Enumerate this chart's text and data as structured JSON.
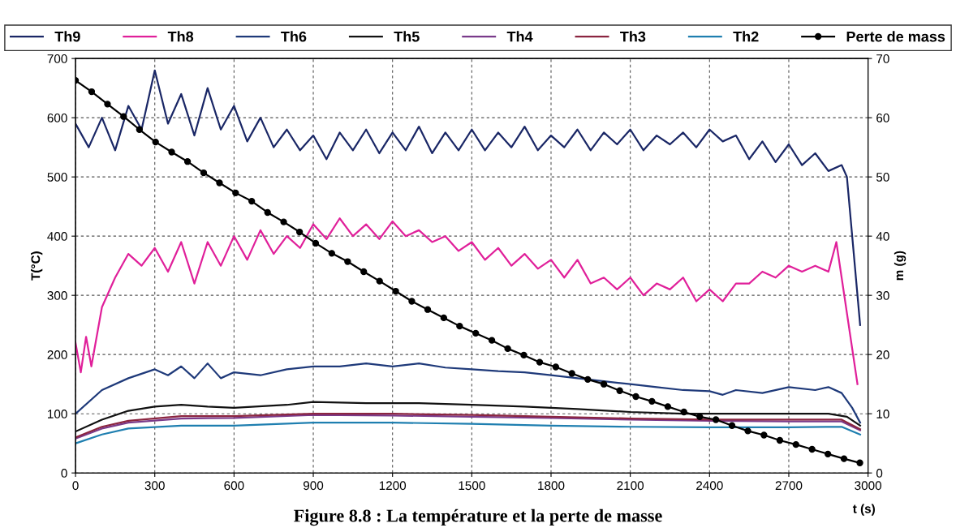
{
  "chart_data": {
    "type": "line",
    "xlabel": "t (s)",
    "ylabel": "T(°C)",
    "y2label": "m (g)",
    "annotations": [
      "Figure 8.8 : La température et la perte de masse"
    ],
    "xlim": [
      0,
      3000
    ],
    "xticks": [
      0,
      300,
      600,
      900,
      1200,
      1500,
      1800,
      2100,
      2400,
      2700,
      3000
    ],
    "ylim": [
      0,
      700
    ],
    "yticks": [
      0,
      100,
      200,
      300,
      400,
      500,
      600,
      700
    ],
    "y2lim": [
      0,
      70
    ],
    "y2ticks": [
      0,
      10,
      20,
      30,
      40,
      50,
      60,
      70
    ],
    "grid": true,
    "legend": "top",
    "line_style": "solid",
    "marker": "none",
    "series": [
      {
        "name": "Th9",
        "color": "#1a2766",
        "x": [
          0,
          50,
          100,
          150,
          200,
          250,
          300,
          350,
          400,
          450,
          500,
          550,
          600,
          650,
          700,
          750,
          800,
          850,
          900,
          950,
          1000,
          1050,
          1100,
          1150,
          1200,
          1250,
          1300,
          1350,
          1400,
          1450,
          1500,
          1550,
          1600,
          1650,
          1700,
          1750,
          1800,
          1850,
          1900,
          1950,
          2000,
          2050,
          2100,
          2150,
          2200,
          2250,
          2300,
          2350,
          2400,
          2450,
          2500,
          2550,
          2600,
          2650,
          2700,
          2750,
          2800,
          2850,
          2900,
          2920,
          2950,
          2970
        ],
        "values": [
          590,
          550,
          600,
          545,
          620,
          580,
          680,
          590,
          640,
          570,
          650,
          580,
          620,
          560,
          600,
          550,
          580,
          545,
          570,
          530,
          575,
          545,
          580,
          540,
          575,
          545,
          585,
          540,
          575,
          545,
          580,
          545,
          575,
          550,
          585,
          545,
          570,
          550,
          580,
          545,
          575,
          555,
          580,
          545,
          570,
          555,
          575,
          550,
          580,
          560,
          570,
          530,
          560,
          525,
          555,
          520,
          540,
          510,
          520,
          500,
          350,
          250
        ]
      },
      {
        "name": "Th8",
        "color": "#e0209a",
        "x": [
          0,
          20,
          40,
          60,
          100,
          150,
          200,
          250,
          300,
          350,
          400,
          450,
          500,
          550,
          600,
          650,
          700,
          750,
          800,
          850,
          900,
          950,
          1000,
          1050,
          1100,
          1150,
          1200,
          1250,
          1300,
          1350,
          1400,
          1450,
          1500,
          1550,
          1600,
          1650,
          1700,
          1750,
          1800,
          1850,
          1900,
          1950,
          2000,
          2050,
          2100,
          2150,
          2200,
          2250,
          2300,
          2350,
          2400,
          2450,
          2500,
          2550,
          2600,
          2650,
          2700,
          2750,
          2800,
          2850,
          2880,
          2900,
          2960
        ],
        "values": [
          220,
          170,
          230,
          180,
          280,
          330,
          370,
          350,
          380,
          340,
          390,
          320,
          390,
          350,
          400,
          360,
          410,
          370,
          400,
          380,
          420,
          395,
          430,
          400,
          420,
          395,
          425,
          400,
          410,
          390,
          400,
          375,
          390,
          360,
          380,
          350,
          370,
          345,
          360,
          330,
          360,
          320,
          330,
          310,
          330,
          300,
          320,
          310,
          330,
          290,
          310,
          290,
          320,
          320,
          340,
          330,
          350,
          340,
          350,
          340,
          390,
          330,
          150
        ]
      },
      {
        "name": "Th6",
        "color": "#1f3a7a",
        "x": [
          0,
          100,
          200,
          300,
          350,
          400,
          450,
          500,
          550,
          600,
          700,
          800,
          900,
          1000,
          1100,
          1200,
          1300,
          1400,
          1500,
          1600,
          1700,
          1800,
          1900,
          2000,
          2100,
          2200,
          2300,
          2400,
          2450,
          2500,
          2600,
          2700,
          2800,
          2850,
          2900,
          2940,
          2970
        ],
        "values": [
          100,
          140,
          160,
          175,
          165,
          180,
          160,
          185,
          160,
          170,
          165,
          175,
          180,
          180,
          185,
          180,
          185,
          178,
          175,
          172,
          170,
          165,
          160,
          155,
          150,
          145,
          140,
          138,
          132,
          140,
          135,
          145,
          140,
          145,
          135,
          110,
          85
        ]
      },
      {
        "name": "Th5",
        "color": "#111111",
        "x": [
          0,
          100,
          200,
          300,
          400,
          500,
          600,
          800,
          900,
          1100,
          1300,
          1500,
          1700,
          1900,
          2100,
          2300,
          2500,
          2700,
          2850,
          2920,
          2970
        ],
        "values": [
          70,
          90,
          105,
          112,
          115,
          112,
          110,
          115,
          120,
          118,
          118,
          115,
          112,
          108,
          103,
          100,
          100,
          100,
          100,
          95,
          80
        ]
      },
      {
        "name": "Th4",
        "color": "#7a3a8a",
        "x": [
          0,
          100,
          200,
          400,
          600,
          900,
          1200,
          1500,
          1800,
          2100,
          2400,
          2700,
          2900,
          2970
        ],
        "values": [
          58,
          75,
          85,
          92,
          93,
          98,
          97,
          95,
          93,
          90,
          88,
          87,
          87,
          72
        ]
      },
      {
        "name": "Th3",
        "color": "#8b2540",
        "x": [
          0,
          100,
          200,
          400,
          600,
          900,
          1200,
          1500,
          1800,
          2100,
          2400,
          2700,
          2900,
          2970
        ],
        "values": [
          60,
          78,
          88,
          96,
          96,
          100,
          100,
          98,
          95,
          92,
          90,
          90,
          90,
          74
        ]
      },
      {
        "name": "Th2",
        "color": "#1f7fb0",
        "x": [
          0,
          100,
          200,
          400,
          600,
          900,
          1200,
          1500,
          1800,
          2100,
          2400,
          2700,
          2900,
          2970
        ],
        "values": [
          50,
          65,
          75,
          80,
          80,
          85,
          85,
          83,
          80,
          78,
          77,
          77,
          78,
          65
        ]
      },
      {
        "name": "Perte de mass",
        "color": "#000000",
        "axis": "y2",
        "marker": "circle",
        "x": [
          0,
          61,
          121,
          182,
          242,
          303,
          364,
          424,
          485,
          545,
          606,
          667,
          727,
          788,
          848,
          909,
          970,
          1030,
          1091,
          1151,
          1212,
          1273,
          1333,
          1394,
          1454,
          1515,
          1576,
          1636,
          1697,
          1757,
          1818,
          1879,
          1939,
          2000,
          2060,
          2121,
          2182,
          2242,
          2303,
          2363,
          2424,
          2485,
          2545,
          2606,
          2666,
          2727,
          2788,
          2848,
          2909,
          2969
        ],
        "values": [
          66.3,
          64.4,
          62.3,
          60.2,
          58.0,
          55.9,
          54.2,
          52.6,
          50.7,
          49.0,
          47.3,
          45.9,
          44.0,
          42.4,
          40.7,
          38.8,
          37.1,
          35.7,
          34.0,
          32.4,
          30.7,
          29.0,
          27.6,
          26.2,
          24.8,
          23.6,
          22.4,
          21.0,
          19.9,
          18.7,
          17.9,
          16.8,
          15.8,
          15.0,
          13.9,
          12.9,
          12.1,
          11.2,
          10.3,
          9.5,
          9.0,
          8.0,
          7.1,
          6.4,
          5.5,
          4.8,
          4.0,
          3.2,
          2.4,
          1.7
        ]
      }
    ]
  }
}
